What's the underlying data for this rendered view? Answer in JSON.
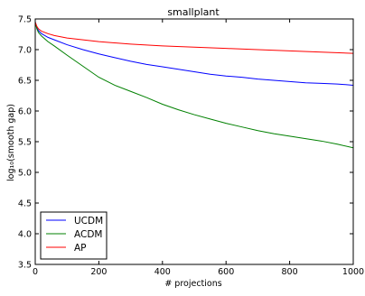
{
  "chart_data": {
    "type": "line",
    "title": "smallplant",
    "xlabel": "# projections",
    "ylabel": "log₁₀(smooth gap)",
    "xlim": [
      0,
      1000
    ],
    "ylim": [
      3.5,
      7.5
    ],
    "xticks": [
      "0",
      "200",
      "400",
      "600",
      "800",
      "1000"
    ],
    "yticks": [
      "3.5",
      "4.0",
      "4.5",
      "5.0",
      "5.5",
      "6.0",
      "6.5",
      "7.0",
      "7.5"
    ],
    "grid": false,
    "legend_position": "bottom-left",
    "series": [
      {
        "name": "UCDM",
        "color": "#0000ff",
        "points": [
          [
            0,
            7.45
          ],
          [
            5,
            7.36
          ],
          [
            10,
            7.31
          ],
          [
            20,
            7.26
          ],
          [
            40,
            7.2
          ],
          [
            60,
            7.16
          ],
          [
            100,
            7.08
          ],
          [
            150,
            7.0
          ],
          [
            200,
            6.93
          ],
          [
            250,
            6.87
          ],
          [
            300,
            6.81
          ],
          [
            350,
            6.76
          ],
          [
            400,
            6.72
          ],
          [
            450,
            6.68
          ],
          [
            500,
            6.64
          ],
          [
            550,
            6.6
          ],
          [
            600,
            6.57
          ],
          [
            650,
            6.55
          ],
          [
            700,
            6.52
          ],
          [
            750,
            6.5
          ],
          [
            800,
            6.48
          ],
          [
            850,
            6.46
          ],
          [
            900,
            6.45
          ],
          [
            950,
            6.44
          ],
          [
            1000,
            6.42
          ]
        ]
      },
      {
        "name": "ACDM",
        "color": "#008000",
        "points": [
          [
            0,
            7.45
          ],
          [
            5,
            7.34
          ],
          [
            10,
            7.28
          ],
          [
            20,
            7.22
          ],
          [
            40,
            7.13
          ],
          [
            60,
            7.06
          ],
          [
            100,
            6.91
          ],
          [
            150,
            6.73
          ],
          [
            200,
            6.55
          ],
          [
            250,
            6.42
          ],
          [
            300,
            6.32
          ],
          [
            350,
            6.22
          ],
          [
            400,
            6.11
          ],
          [
            450,
            6.02
          ],
          [
            500,
            5.94
          ],
          [
            550,
            5.87
          ],
          [
            600,
            5.8
          ],
          [
            650,
            5.74
          ],
          [
            700,
            5.68
          ],
          [
            750,
            5.63
          ],
          [
            800,
            5.59
          ],
          [
            850,
            5.55
          ],
          [
            900,
            5.51
          ],
          [
            950,
            5.46
          ],
          [
            1000,
            5.4
          ]
        ]
      },
      {
        "name": "AP",
        "color": "#ff0000",
        "points": [
          [
            0,
            7.45
          ],
          [
            5,
            7.38
          ],
          [
            10,
            7.34
          ],
          [
            20,
            7.3
          ],
          [
            40,
            7.26
          ],
          [
            60,
            7.23
          ],
          [
            100,
            7.19
          ],
          [
            150,
            7.16
          ],
          [
            200,
            7.13
          ],
          [
            300,
            7.09
          ],
          [
            400,
            7.06
          ],
          [
            500,
            7.04
          ],
          [
            600,
            7.02
          ],
          [
            700,
            7.0
          ],
          [
            800,
            6.98
          ],
          [
            900,
            6.96
          ],
          [
            1000,
            6.94
          ]
        ]
      }
    ]
  }
}
